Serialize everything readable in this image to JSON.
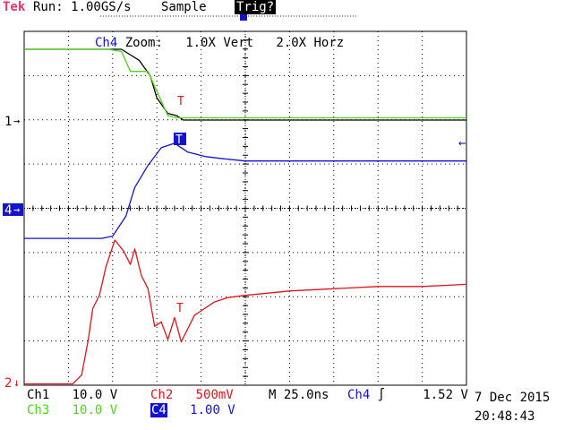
{
  "header": {
    "brand": "Tek",
    "run_status": "Run: 1.00GS/s",
    "acquisition": "Sample",
    "trigger_status": "Trig?"
  },
  "zoom": {
    "channel": "Ch4",
    "label": "Zoom:",
    "vert": "1.0X Vert",
    "horz": "2.0X Horz"
  },
  "markers": {
    "ch1": "1",
    "ch2": "2",
    "ch4": "4",
    "trigger_point": "T"
  },
  "footer": {
    "ch1_label": "Ch1",
    "ch1_scale": "10.0 V",
    "ch2_label": "Ch2",
    "ch2_scale": "500mV",
    "ch3_label": "Ch3",
    "ch3_scale": "10.0 V",
    "c4_label": "C4",
    "c4_scale": "1.00 V",
    "timebase": "M 25.0ns",
    "trig_source": "Ch4",
    "trig_level": "1.52 V",
    "date": "7 Dec 2015",
    "time": "20:48:43"
  },
  "colors": {
    "ch1": "#000000",
    "ch2": "#e0141c",
    "ch3": "#4cd41c",
    "ch4": "#1414d0",
    "brand": "#e8336e"
  },
  "chart_data": {
    "type": "line",
    "x_divisions": 10,
    "y_divisions": 8,
    "grid": true,
    "series": [
      {
        "name": "Ch1",
        "color": "#000000",
        "x": [
          0,
          3.8,
          4.4,
          5.2,
          5.7,
          6.0,
          6.5,
          6.9,
          7.2,
          7.6,
          8.0,
          8.8,
          10,
          20
        ],
        "y": [
          3.2,
          3.2,
          3.2,
          2.7,
          2.0,
          1.0,
          0.3,
          0.2,
          0.0,
          0.0,
          0.0,
          0.0,
          0.0,
          0.0
        ]
      },
      {
        "name": "Ch3",
        "color": "#4cd41c",
        "x": [
          0,
          3.8,
          4.4,
          4.8,
          5.6,
          6.0,
          6.5,
          6.9,
          7.2,
          7.6,
          8.0,
          8.8,
          10,
          20
        ],
        "y": [
          3.2,
          3.2,
          3.1,
          2.2,
          2.2,
          1.3,
          0.2,
          0.1,
          0.1,
          0.1,
          0.1,
          0.1,
          0.1,
          0.1
        ]
      },
      {
        "name": "Ch4",
        "color": "#1414d0",
        "x": [
          0,
          3.5,
          4.0,
          4.6,
          5.0,
          5.6,
          6.2,
          6.8,
          7.4,
          8.2,
          9.0,
          10,
          12,
          14,
          20
        ],
        "y": [
          -1.3,
          -1.3,
          -1.2,
          -0.3,
          1.0,
          2.0,
          2.8,
          3.0,
          2.6,
          2.4,
          2.3,
          2.2,
          2.2,
          2.2,
          2.2
        ]
      },
      {
        "name": "Ch2",
        "color": "#e0141c",
        "x": [
          0,
          2.2,
          2.6,
          2.9,
          3.1,
          3.4,
          3.7,
          4.1,
          4.5,
          4.8,
          5.0,
          5.3,
          5.6,
          5.9,
          6.2,
          6.5,
          6.8,
          7.1,
          7.4,
          7.7,
          8.0,
          8.6,
          9.2,
          10,
          12,
          14,
          16,
          18,
          20
        ],
        "y": [
          -0.1,
          -0.1,
          0.3,
          1.9,
          3.3,
          3.9,
          5.2,
          6.4,
          5.9,
          5.3,
          6.0,
          4.8,
          4.2,
          2.5,
          2.7,
          1.9,
          2.9,
          1.8,
          2.4,
          3.0,
          3.2,
          3.6,
          3.8,
          3.9,
          4.1,
          4.2,
          4.3,
          4.3,
          4.4
        ]
      }
    ]
  }
}
